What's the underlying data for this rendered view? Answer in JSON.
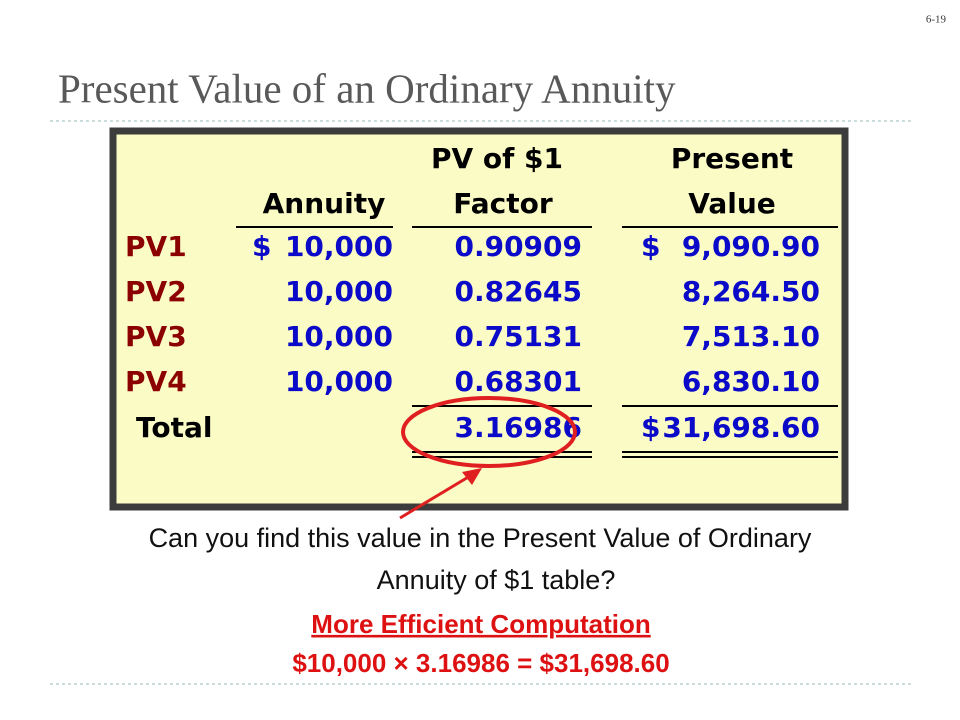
{
  "page_number": "6-19",
  "title": "Present Value of an Ordinary Annuity",
  "table": {
    "header_top": {
      "factor": "PV of $1",
      "value": "Present"
    },
    "header_bottom": {
      "annuity": "Annuity",
      "factor": "Factor",
      "value": "Value"
    },
    "rows": [
      {
        "label": "PV1",
        "annuity_currency": "$",
        "annuity": "10,000",
        "factor": "0.90909",
        "value_currency": "$",
        "value": "9,090.90"
      },
      {
        "label": "PV2",
        "annuity": "10,000",
        "factor": "0.82645",
        "value": "8,264.50"
      },
      {
        "label": "PV3",
        "annuity": "10,000",
        "factor": "0.75131",
        "value": "7,513.10"
      },
      {
        "label": "PV4",
        "annuity": "10,000",
        "factor": "0.68301",
        "value": "6,830.10"
      }
    ],
    "total": {
      "label": "Total",
      "factor": "3.16986",
      "value_currency": "$",
      "value": "31,698.60"
    }
  },
  "caption": [
    "Can you find this value in the Present Value of Ordinary",
    "Annuity of $1 table?"
  ],
  "computation": {
    "heading": "More Efficient Computation",
    "formula": "$10,000 × 3.16986 = $31,698.60"
  }
}
